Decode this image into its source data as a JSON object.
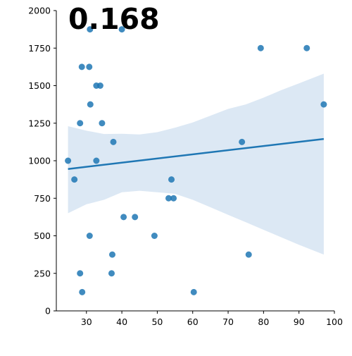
{
  "chart_data": {
    "type": "scatter",
    "annotation": "0.168",
    "xlim": [
      21.5,
      100
    ],
    "ylim": [
      0,
      2000
    ],
    "x_ticks": [
      30,
      40,
      50,
      60,
      70,
      80,
      90,
      100
    ],
    "y_ticks": [
      0,
      250,
      500,
      750,
      1000,
      1250,
      1500,
      1750,
      2000
    ],
    "grid": false,
    "colors": {
      "points": "#1f77b4",
      "fit_line": "#1f77b4",
      "confidence_band": "#dce8f4"
    },
    "points": [
      {
        "x": 24.8,
        "y": 1000
      },
      {
        "x": 26.6,
        "y": 875
      },
      {
        "x": 28.2,
        "y": 1250
      },
      {
        "x": 28.2,
        "y": 250
      },
      {
        "x": 28.7,
        "y": 1625
      },
      {
        "x": 28.8,
        "y": 125
      },
      {
        "x": 30.8,
        "y": 1625
      },
      {
        "x": 30.9,
        "y": 500
      },
      {
        "x": 31.0,
        "y": 1875
      },
      {
        "x": 31.1,
        "y": 1375
      },
      {
        "x": 32.8,
        "y": 1500
      },
      {
        "x": 32.8,
        "y": 1000
      },
      {
        "x": 33.9,
        "y": 1500
      },
      {
        "x": 34.4,
        "y": 1250
      },
      {
        "x": 37.1,
        "y": 250
      },
      {
        "x": 37.3,
        "y": 375
      },
      {
        "x": 37.6,
        "y": 1125
      },
      {
        "x": 40.0,
        "y": 1875
      },
      {
        "x": 40.5,
        "y": 625
      },
      {
        "x": 43.7,
        "y": 625
      },
      {
        "x": 49.2,
        "y": 500
      },
      {
        "x": 53.2,
        "y": 750
      },
      {
        "x": 54.0,
        "y": 875
      },
      {
        "x": 54.6,
        "y": 750
      },
      {
        "x": 60.3,
        "y": 125
      },
      {
        "x": 73.9,
        "y": 1125
      },
      {
        "x": 75.8,
        "y": 375
      },
      {
        "x": 79.2,
        "y": 1750
      },
      {
        "x": 92.2,
        "y": 1750
      },
      {
        "x": 97.0,
        "y": 1375
      }
    ],
    "regression": {
      "x": [
        24.8,
        97.0
      ],
      "y": [
        945,
        1145
      ]
    },
    "confidence_band": [
      {
        "x": 24.8,
        "lower": 650,
        "upper": 1230
      },
      {
        "x": 30,
        "lower": 710,
        "upper": 1200
      },
      {
        "x": 35,
        "lower": 740,
        "upper": 1178
      },
      {
        "x": 40,
        "lower": 790,
        "upper": 1180
      },
      {
        "x": 45,
        "lower": 800,
        "upper": 1175
      },
      {
        "x": 50,
        "lower": 790,
        "upper": 1190
      },
      {
        "x": 55,
        "lower": 780,
        "upper": 1220
      },
      {
        "x": 60,
        "lower": 740,
        "upper": 1255
      },
      {
        "x": 65,
        "lower": 690,
        "upper": 1300
      },
      {
        "x": 70,
        "lower": 640,
        "upper": 1345
      },
      {
        "x": 75,
        "lower": 590,
        "upper": 1375
      },
      {
        "x": 80,
        "lower": 540,
        "upper": 1420
      },
      {
        "x": 85,
        "lower": 490,
        "upper": 1470
      },
      {
        "x": 90,
        "lower": 440,
        "upper": 1515
      },
      {
        "x": 97.0,
        "lower": 375,
        "upper": 1580
      }
    ]
  }
}
